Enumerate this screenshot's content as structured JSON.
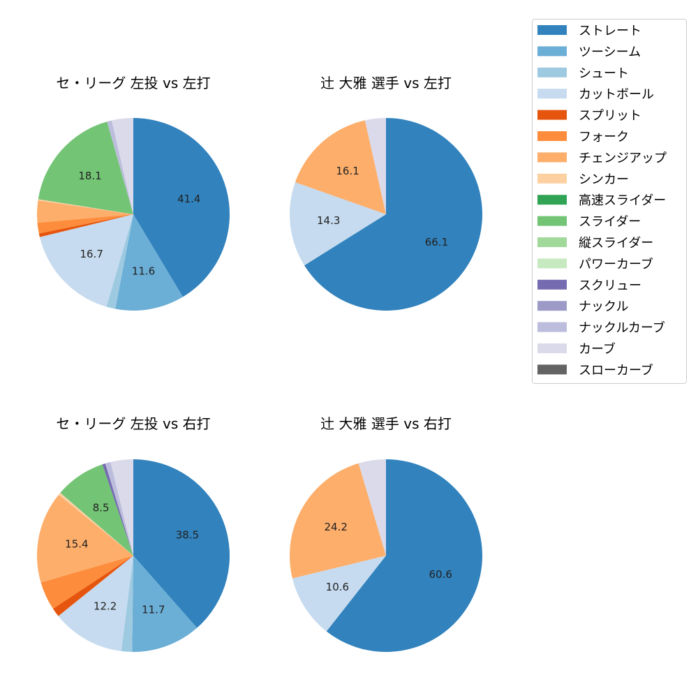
{
  "legend": {
    "placement": "right",
    "items": [
      {
        "name": "ストレート",
        "color": "#3182bd"
      },
      {
        "name": "ツーシーム",
        "color": "#6baed6"
      },
      {
        "name": "シュート",
        "color": "#9ecae1"
      },
      {
        "name": "カットボール",
        "color": "#c6dbef"
      },
      {
        "name": "スプリット",
        "color": "#e6550d"
      },
      {
        "name": "フォーク",
        "color": "#fd8d3c"
      },
      {
        "name": "チェンジアップ",
        "color": "#fdae6b"
      },
      {
        "name": "シンカー",
        "color": "#fdd0a2"
      },
      {
        "name": "高速スライダー",
        "color": "#31a354"
      },
      {
        "name": "スライダー",
        "color": "#74c476"
      },
      {
        "name": "縦スライダー",
        "color": "#a1d99b"
      },
      {
        "name": "パワーカーブ",
        "color": "#c7e9c0"
      },
      {
        "name": "スクリュー",
        "color": "#756bb1"
      },
      {
        "name": "ナックル",
        "color": "#9e9ac8"
      },
      {
        "name": "ナックルカーブ",
        "color": "#bcbddc"
      },
      {
        "name": "カーブ",
        "color": "#dadaeb"
      },
      {
        "name": "スローカーブ",
        "color": "#636363"
      }
    ]
  },
  "chart_data": [
    {
      "type": "pie",
      "title": "セ・リーグ 左投 vs 左打",
      "categories": [
        "ストレート",
        "ツーシーム",
        "シュート",
        "カットボール",
        "スプリット",
        "フォーク",
        "チェンジアップ",
        "シンカー",
        "スライダー",
        "ナックルカーブ",
        "カーブ"
      ],
      "values": [
        41.4,
        11.6,
        1.5,
        16.7,
        0.6,
        1.8,
        3.7,
        0.2,
        18.1,
        0.8,
        3.6
      ],
      "labels": [
        "41.4",
        "11.6",
        "",
        "16.7",
        "",
        "",
        "",
        "",
        "18.1",
        "",
        ""
      ]
    },
    {
      "type": "pie",
      "title": "辻 大雅 選手 vs 左打",
      "categories": [
        "ストレート",
        "カットボール",
        "チェンジアップ",
        "カーブ"
      ],
      "values": [
        66.1,
        14.3,
        16.1,
        3.5
      ],
      "labels": [
        "66.1",
        "14.3",
        "16.1",
        ""
      ]
    },
    {
      "type": "pie",
      "title": "セ・リーグ 左投 vs 右打",
      "categories": [
        "ストレート",
        "ツーシーム",
        "シュート",
        "カットボール",
        "スプリット",
        "フォーク",
        "チェンジアップ",
        "シンカー",
        "スライダー",
        "スクリュー",
        "ナックルカーブ",
        "カーブ"
      ],
      "values": [
        38.5,
        11.7,
        1.8,
        12.2,
        1.5,
        4.8,
        15.4,
        0.4,
        8.5,
        0.5,
        0.9,
        3.8
      ],
      "labels": [
        "38.5",
        "11.7",
        "",
        "12.2",
        "",
        "",
        "15.4",
        "",
        "8.5",
        "",
        "",
        ""
      ]
    },
    {
      "type": "pie",
      "title": "辻 大雅 選手 vs 右打",
      "categories": [
        "ストレート",
        "カットボール",
        "チェンジアップ",
        "カーブ"
      ],
      "values": [
        60.6,
        10.6,
        24.2,
        4.6
      ],
      "labels": [
        "60.6",
        "10.6",
        "24.2",
        ""
      ]
    }
  ]
}
